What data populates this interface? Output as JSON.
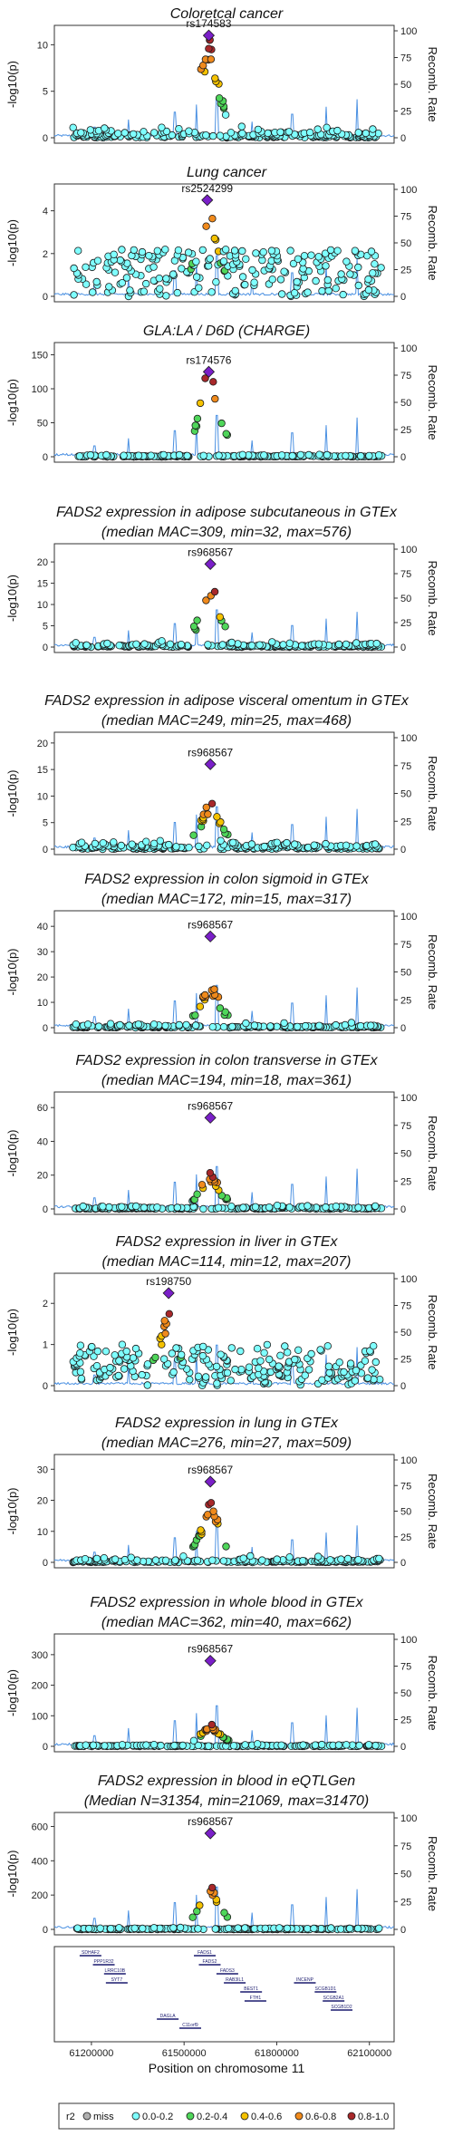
{
  "figure": {
    "x_axis_label": "Position on chromosome 11",
    "x_ticks": [
      "61200000",
      "61500000",
      "61800000",
      "62100000"
    ],
    "y_label_left": "-log10(p)",
    "y_label_right": "Recomb. Rate",
    "right_axis_ticks": [
      "0",
      "25",
      "50",
      "75",
      "100"
    ]
  },
  "chart_data": [
    {
      "type": "scatter",
      "title": "Coloretcal cancer",
      "lead_snp": "rs174583",
      "ylim": [
        0,
        11.5
      ],
      "yticks": [
        "0",
        "5",
        "10"
      ],
      "peak": 11.0,
      "lead_value": 11.0,
      "noise": 1.5,
      "lead_x": 61580000
    },
    {
      "type": "scatter",
      "title": "Lung cancer",
      "lead_snp": "rs2524299",
      "ylim": [
        0,
        5.0
      ],
      "yticks": [
        "0",
        "2",
        "4"
      ],
      "peak": 4.5,
      "lead_value": 4.5,
      "noise": 2.2,
      "lead_x": 61575000
    },
    {
      "type": "scatter",
      "title": "GLA:LA / D6D (CHARGE)",
      "lead_snp": "rs174576",
      "ylim": [
        0,
        160
      ],
      "yticks": [
        "0",
        "50",
        "100",
        "150"
      ],
      "peak": 128,
      "lead_value": 125,
      "noise": 4,
      "lead_x": 61580000
    },
    {
      "type": "scatter",
      "title": "FADS2 expression in adipose subcutaneous in GTEx",
      "subtitle": "(median MAC=309, min=32, max=576)",
      "lead_snp": "rs968567",
      "ylim": [
        0,
        23
      ],
      "yticks": [
        "0",
        "5",
        "10",
        "15",
        "20"
      ],
      "peak": 15,
      "lead_value": 19.5,
      "noise": 1.5,
      "lead_x": 61585000
    },
    {
      "type": "scatter",
      "title": "FADS2 expression in adipose visceral omentum in GTEx",
      "subtitle": "(median MAC=249, min=25, max=468)",
      "lead_snp": "rs968567",
      "ylim": [
        0,
        21
      ],
      "yticks": [
        "0",
        "5",
        "10",
        "15",
        "20"
      ],
      "peak": 9.5,
      "lead_value": 16,
      "noise": 2,
      "lead_x": 61585000
    },
    {
      "type": "scatter",
      "title": "FADS2 expression in colon sigmoid in GTEx",
      "subtitle": "(median MAC=172, min=15, max=317)",
      "lead_snp": "rs968567",
      "ylim": [
        0,
        44
      ],
      "yticks": [
        "0",
        "10",
        "20",
        "30",
        "40"
      ],
      "peak": 18,
      "lead_value": 36,
      "noise": 2,
      "lead_x": 61585000
    },
    {
      "type": "scatter",
      "title": "FADS2 expression in colon transverse in GTEx",
      "subtitle": "(median MAC=194, min=18, max=361)",
      "lead_snp": "rs968567",
      "ylim": [
        0,
        66
      ],
      "yticks": [
        "0",
        "20",
        "40",
        "60"
      ],
      "peak": 22,
      "lead_value": 54,
      "noise": 2.5,
      "lead_x": 61585000
    },
    {
      "type": "scatter",
      "title": "FADS2 expression in liver in GTEx",
      "subtitle": "(median MAC=114, min=12, max=207)",
      "lead_snp": "rs198750",
      "ylim": [
        0,
        2.6
      ],
      "yticks": [
        "0",
        "1",
        "2"
      ],
      "peak": 1.9,
      "lead_value": 2.25,
      "noise": 1.0,
      "lead_x": 61450000
    },
    {
      "type": "scatter",
      "title": "FADS2 expression in lung in GTEx",
      "subtitle": "(median MAC=276, min=27, max=509)",
      "lead_snp": "rs968567",
      "ylim": [
        0,
        33
      ],
      "yticks": [
        "0",
        "10",
        "20",
        "30"
      ],
      "peak": 20,
      "lead_value": 26,
      "noise": 2,
      "lead_x": 61585000
    },
    {
      "type": "scatter",
      "title": "FADS2 expression in whole blood in GTEx",
      "subtitle": "(median MAC=362, min=40, max=662)",
      "lead_snp": "rs968567",
      "ylim": [
        0,
        350
      ],
      "yticks": [
        "0",
        "100",
        "200",
        "300"
      ],
      "peak": 75,
      "lead_value": 280,
      "noise": 8,
      "lead_x": 61585000
    },
    {
      "type": "scatter",
      "title": "FADS2 expression in blood in eQTLGen",
      "subtitle": "(Median N=31354, min=21069, max=31470)",
      "lead_snp": "rs968567",
      "ylim": [
        0,
        650
      ],
      "yticks": [
        "0",
        "200",
        "400",
        "600"
      ],
      "peak": 270,
      "lead_value": 560,
      "noise": 12,
      "lead_x": 61585000
    }
  ],
  "genes": [
    {
      "name": "SDHAF2",
      "x": 61197000,
      "row": 0
    },
    {
      "name": "PPP1R32",
      "x": 61240000,
      "row": 1
    },
    {
      "name": "LRRC10B",
      "x": 61276000,
      "row": 2
    },
    {
      "name": "SYT7",
      "x": 61282000,
      "row": 3
    },
    {
      "name": "DAGLA",
      "x": 61447000,
      "row": 7
    },
    {
      "name": "C11orf9",
      "x": 61520000,
      "row": 8
    },
    {
      "name": "FADS2",
      "x": 61583000,
      "row": 1
    },
    {
      "name": "FADS1",
      "x": 61567000,
      "row": 0
    },
    {
      "name": "FADS3",
      "x": 61640000,
      "row": 2
    },
    {
      "name": "RAB3IL1",
      "x": 61664000,
      "row": 3
    },
    {
      "name": "BEST1",
      "x": 61717000,
      "row": 4
    },
    {
      "name": "FTH1",
      "x": 61731000,
      "row": 5
    },
    {
      "name": "INCENP",
      "x": 61891000,
      "row": 3
    },
    {
      "name": "SCGB1D1",
      "x": 61958000,
      "row": 4
    },
    {
      "name": "SCGB2A1",
      "x": 61984000,
      "row": 5
    },
    {
      "name": "SCGB1D2",
      "x": 62010000,
      "row": 6
    }
  ],
  "legend": {
    "title": "r2",
    "items": [
      {
        "label": "miss",
        "color": "#b0b0b0"
      },
      {
        "label": "0.0-0.2",
        "color": "#7fffff"
      },
      {
        "label": "0.2-0.4",
        "color": "#4fd65a"
      },
      {
        "label": "0.4-0.6",
        "color": "#f5c200"
      },
      {
        "label": "0.6-0.8",
        "color": "#f08a1c"
      },
      {
        "label": "0.8-1.0",
        "color": "#a8282a"
      }
    ],
    "lead_color": "#7a1fc8",
    "recomb_color": "#4a90e2"
  }
}
